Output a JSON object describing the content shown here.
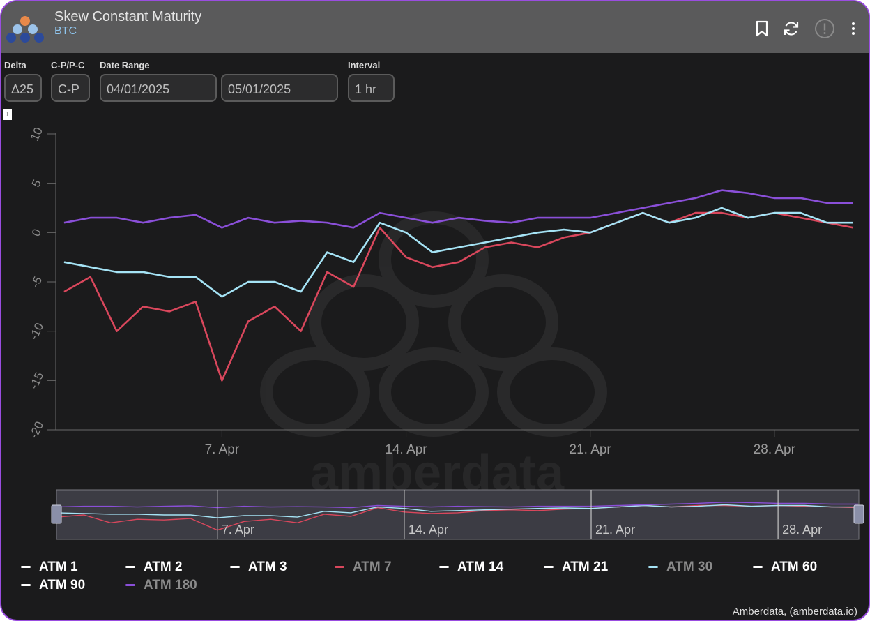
{
  "header": {
    "title": "Skew Constant Maturity",
    "subtitle": "BTC"
  },
  "controls": {
    "delta": {
      "label": "Delta",
      "value": "Δ25"
    },
    "cp": {
      "label": "C-P/P-C",
      "value": "C-P"
    },
    "date_range": {
      "label": "Date Range",
      "start": "04/01/2025",
      "end": "05/01/2025"
    },
    "interval": {
      "label": "Interval",
      "value": "1 hr"
    }
  },
  "icons": [
    "bookmark-icon",
    "refresh-icon",
    "alert-icon",
    "more-vert-icon"
  ],
  "colors": {
    "atm7": "#d9475c",
    "atm30": "#a5e3f5",
    "atm180": "#8a4fd8",
    "frame": "#9a4de0"
  },
  "chart_data": {
    "type": "line",
    "title": "Skew Constant Maturity",
    "xlabel": "",
    "ylabel": "",
    "ylim": [
      -20,
      10
    ],
    "yticks": [
      "10",
      "5",
      "0",
      "-5",
      "-10",
      "-15",
      "-20"
    ],
    "xticks": [
      "7. Apr",
      "14. Apr",
      "21. Apr",
      "28. Apr"
    ],
    "grid": false,
    "legend_position": "bottom",
    "x": [
      "Apr 1",
      "Apr 2",
      "Apr 3",
      "Apr 4",
      "Apr 5",
      "Apr 6",
      "Apr 7",
      "Apr 8",
      "Apr 9",
      "Apr 10",
      "Apr 11",
      "Apr 12",
      "Apr 13",
      "Apr 14",
      "Apr 15",
      "Apr 16",
      "Apr 17",
      "Apr 18",
      "Apr 19",
      "Apr 20",
      "Apr 21",
      "Apr 22",
      "Apr 23",
      "Apr 24",
      "Apr 25",
      "Apr 26",
      "Apr 27",
      "Apr 28",
      "Apr 29",
      "Apr 30",
      "May 1"
    ],
    "series": [
      {
        "name": "ATM 7",
        "color": "#d9475c",
        "values": [
          -6,
          -4.5,
          -10,
          -7.5,
          -8,
          -7,
          -15,
          -9,
          -7.5,
          -10,
          -4,
          -5.5,
          0.5,
          -2.5,
          -3.5,
          -3,
          -1.5,
          -1,
          -1.5,
          -0.5,
          0,
          1,
          2,
          1,
          2,
          2,
          1.5,
          2,
          1.5,
          1,
          0.5
        ]
      },
      {
        "name": "ATM 30",
        "color": "#a5e3f5",
        "values": [
          -3,
          -3.5,
          -4,
          -4,
          -4.5,
          -4.5,
          -6.5,
          -5,
          -5,
          -6,
          -2,
          -3,
          1,
          0,
          -2,
          -1.5,
          -1,
          -0.5,
          0,
          0.3,
          0,
          1,
          2,
          1,
          1.5,
          2.5,
          1.5,
          2,
          2,
          1,
          1
        ]
      },
      {
        "name": "ATM 180",
        "color": "#8a4fd8",
        "values": [
          1,
          1.5,
          1.5,
          1,
          1.5,
          1.8,
          0.5,
          1.5,
          1,
          1.2,
          1,
          0.5,
          2,
          1.5,
          1,
          1.5,
          1.2,
          1,
          1.5,
          1.5,
          1.5,
          2,
          2.5,
          3,
          3.5,
          4.3,
          4,
          3.5,
          3.5,
          3,
          3
        ]
      }
    ],
    "navigator_xticks": [
      "7. Apr",
      "14. Apr",
      "21. Apr",
      "28. Apr"
    ]
  },
  "legend": [
    {
      "label": "ATM 1",
      "color": "#ffffff",
      "active": true
    },
    {
      "label": "ATM 2",
      "color": "#ffffff",
      "active": true
    },
    {
      "label": "ATM 3",
      "color": "#ffffff",
      "active": true
    },
    {
      "label": "ATM 7",
      "color": "#d9475c",
      "active": false
    },
    {
      "label": "ATM 14",
      "color": "#ffffff",
      "active": true
    },
    {
      "label": "ATM 21",
      "color": "#ffffff",
      "active": true
    },
    {
      "label": "ATM 30",
      "color": "#a5e3f5",
      "active": false
    },
    {
      "label": "ATM 60",
      "color": "#ffffff",
      "active": true
    },
    {
      "label": "ATM 90",
      "color": "#ffffff",
      "active": true
    },
    {
      "label": "ATM 180",
      "color": "#8a4fd8",
      "active": false
    }
  ],
  "watermark": "amberdata",
  "credit": "Amberdata, (amberdata.io)"
}
